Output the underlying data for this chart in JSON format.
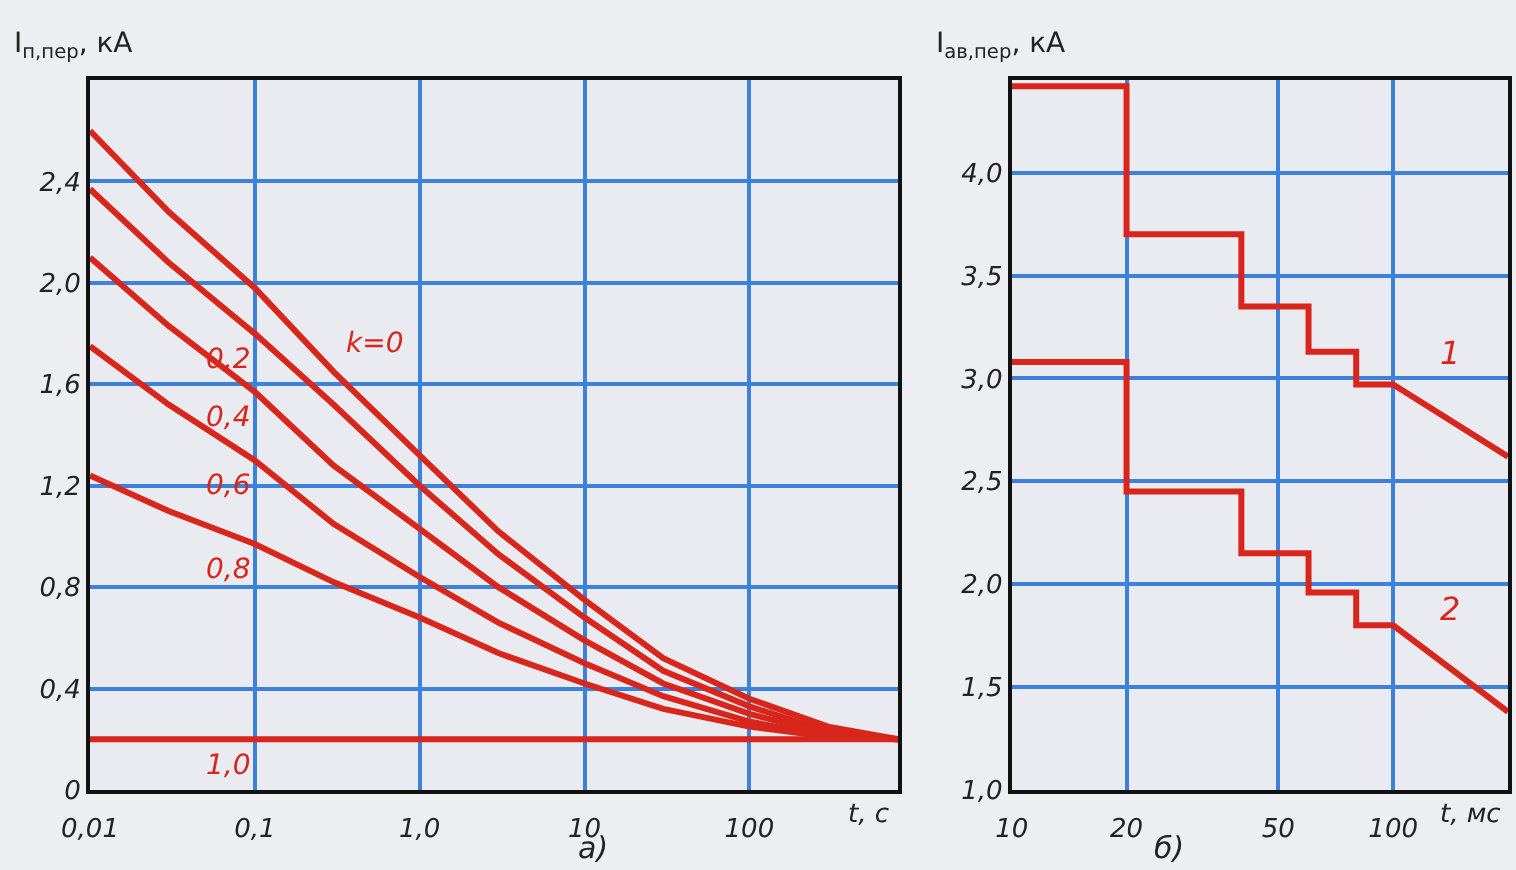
{
  "chart_data": [
    {
      "type": "line",
      "ylabel": "I$_{п,пер}$, кА",
      "xlabel": "t, с",
      "log": "x",
      "grid": true,
      "x": [
        0.01,
        0.03,
        0.1,
        0.3,
        1,
        3,
        10,
        30,
        100,
        300,
        800
      ],
      "series": [
        {
          "name": "k=0",
          "color": "#d8261c",
          "values": [
            2.6,
            2.28,
            1.98,
            1.65,
            1.32,
            1.02,
            0.75,
            0.52,
            0.36,
            0.25,
            0.2
          ]
        },
        {
          "name": "0,2",
          "color": "#d8261c",
          "values": [
            2.37,
            2.08,
            1.8,
            1.52,
            1.2,
            0.93,
            0.68,
            0.47,
            0.33,
            0.23,
            0.2
          ]
        },
        {
          "name": "0,4",
          "color": "#d8261c",
          "values": [
            2.1,
            1.83,
            1.57,
            1.28,
            1.03,
            0.8,
            0.59,
            0.42,
            0.3,
            0.22,
            0.2
          ]
        },
        {
          "name": "0,6",
          "color": "#d8261c",
          "values": [
            1.75,
            1.52,
            1.3,
            1.05,
            0.84,
            0.66,
            0.5,
            0.37,
            0.27,
            0.21,
            0.2
          ]
        },
        {
          "name": "0,8",
          "color": "#d8261c",
          "values": [
            1.24,
            1.1,
            0.97,
            0.82,
            0.68,
            0.54,
            0.42,
            0.32,
            0.25,
            0.21,
            0.2
          ]
        },
        {
          "name": "1,0",
          "color": "#d8261c",
          "values": [
            0.2,
            0.2,
            0.2,
            0.2,
            0.2,
            0.2,
            0.2,
            0.2,
            0.2,
            0.2,
            0.2
          ]
        }
      ],
      "xlim": [
        0.01,
        800
      ],
      "ylim": [
        0,
        2.8
      ],
      "xticks": [
        {
          "value": 0.01,
          "label": "0,01"
        },
        {
          "value": 0.1,
          "label": "0,1"
        },
        {
          "value": 1,
          "label": "1,0"
        },
        10,
        100
      ],
      "yticks": [
        0,
        {
          "value": 0.4,
          "label": "0,4"
        },
        {
          "value": 0.8,
          "label": "0,8"
        },
        {
          "value": 1.2,
          "label": "1,2"
        },
        {
          "value": 1.6,
          "label": "1,6"
        },
        {
          "value": 2.0,
          "label": "2,0"
        },
        {
          "value": 2.4,
          "label": "2,4"
        }
      ],
      "annotations": [
        "а)"
      ]
    },
    {
      "type": "line",
      "ylabel": "I$_{ав,пер}$, кА",
      "xlabel": "t, мс",
      "log": "x",
      "grid": true,
      "x": [
        10,
        20,
        20,
        40,
        40,
        60,
        60,
        80,
        80,
        100,
        200
      ],
      "series": [
        {
          "name": "1",
          "color": "#d8261c",
          "values": [
            4.42,
            4.42,
            3.7,
            3.7,
            3.35,
            3.35,
            3.13,
            3.13,
            2.97,
            2.97,
            2.62
          ]
        },
        {
          "name": "2",
          "color": "#d8261c",
          "values": [
            3.08,
            3.08,
            2.45,
            2.45,
            2.15,
            2.15,
            1.96,
            1.96,
            1.8,
            1.8,
            1.38
          ]
        }
      ],
      "xlim": [
        10,
        200
      ],
      "ylim": [
        1.0,
        4.45
      ],
      "xticks": [
        10,
        20,
        50,
        100
      ],
      "yticks": [
        {
          "value": 1.0,
          "label": "1,0"
        },
        {
          "value": 1.5,
          "label": "1,5"
        },
        {
          "value": 2.0,
          "label": "2,0"
        },
        {
          "value": 2.5,
          "label": "2,5"
        },
        {
          "value": 3.0,
          "label": "3,0"
        },
        {
          "value": 3.5,
          "label": "3,5"
        },
        {
          "value": 4.0,
          "label": "4,0"
        }
      ],
      "annotations": [
        "б)"
      ]
    }
  ]
}
